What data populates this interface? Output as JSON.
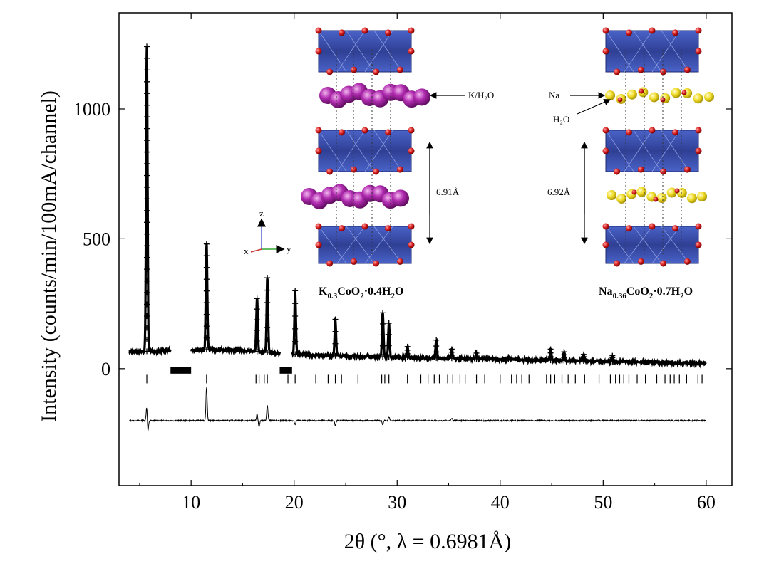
{
  "chart_data": {
    "type": "scatter",
    "title": "",
    "xlabel": "2θ (°, λ = 0.6981Å)",
    "ylabel": "Intensity (counts/min/100mA/channel)",
    "xlim": [
      3,
      62.5
    ],
    "ylim": [
      -450,
      1370
    ],
    "x_ticks": [
      10,
      20,
      30,
      40,
      50,
      60
    ],
    "y_ticks": [
      0,
      500,
      1000
    ],
    "x_tick_labels": [
      "10",
      "20",
      "30",
      "40",
      "50",
      "60"
    ],
    "y_tick_labels": [
      "0",
      "500",
      "1000"
    ],
    "grid": false,
    "legend": "none",
    "background_start": [
      4,
      65
    ],
    "background_end": [
      60,
      20
    ],
    "excluded_regions": [
      [
        8.0,
        10.0
      ],
      [
        18.6,
        19.8
      ]
    ],
    "peaks": [
      {
        "x": 5.7,
        "y": 1240
      },
      {
        "x": 11.5,
        "y": 480
      },
      {
        "x": 16.4,
        "y": 270
      },
      {
        "x": 17.4,
        "y": 350
      },
      {
        "x": 20.1,
        "y": 300
      },
      {
        "x": 24.0,
        "y": 190
      },
      {
        "x": 28.6,
        "y": 215
      },
      {
        "x": 29.2,
        "y": 175
      },
      {
        "x": 31.0,
        "y": 85
      },
      {
        "x": 33.8,
        "y": 110
      },
      {
        "x": 35.3,
        "y": 75
      },
      {
        "x": 37.7,
        "y": 60
      },
      {
        "x": 40.8,
        "y": 45
      },
      {
        "x": 44.9,
        "y": 75
      },
      {
        "x": 46.2,
        "y": 65
      },
      {
        "x": 48.1,
        "y": 55
      },
      {
        "x": 50.9,
        "y": 50
      }
    ],
    "reflection_tick_y": -40,
    "reflections": [
      5.7,
      11.5,
      16.3,
      16.6,
      17.1,
      17.4,
      19.4,
      20.1,
      22.1,
      23.3,
      24.0,
      24.6,
      26.2,
      28.5,
      28.8,
      29.2,
      31.0,
      32.3,
      33.0,
      33.6,
      34.1,
      34.9,
      35.4,
      36.1,
      36.6,
      37.7,
      38.5,
      40.0,
      41.1,
      41.6,
      42.1,
      42.8,
      44.5,
      44.9,
      45.3,
      46.0,
      46.6,
      47.3,
      48.2,
      49.6,
      50.7,
      51.2,
      51.6,
      52.0,
      52.5,
      53.3,
      54.1,
      55.2,
      56.0,
      56.5,
      56.9,
      57.4,
      58.1,
      59.2,
      59.6
    ],
    "difference_baseline": -200,
    "difference_features": [
      {
        "x": 5.7,
        "dy": 60
      },
      {
        "x": 5.8,
        "dy": -50
      },
      {
        "x": 11.5,
        "dy": 130
      },
      {
        "x": 16.4,
        "dy": 25
      },
      {
        "x": 16.6,
        "dy": -25
      },
      {
        "x": 17.4,
        "dy": 60
      },
      {
        "x": 20.1,
        "dy": -15
      },
      {
        "x": 24.0,
        "dy": -20
      },
      {
        "x": 28.6,
        "dy": -15
      },
      {
        "x": 29.2,
        "dy": 15
      },
      {
        "x": 35.3,
        "dy": 8
      }
    ]
  },
  "inset_left": {
    "formula_main": "K",
    "formula_sub1": "0.3",
    "formula_mid": "CoO",
    "formula_sub2": "2",
    "formula_mid2": "·0.4H",
    "formula_sub3": "2",
    "formula_end": "O",
    "label_intercalant": "K/H₂O",
    "spacing": "6.91Å",
    "colors": {
      "octahedra": "#3a4fa8",
      "oxygen": "#cc1111",
      "intercalant": "#a020a0"
    }
  },
  "inset_right": {
    "formula_main": "Na",
    "formula_sub1": "0.36",
    "formula_mid": "CoO",
    "formula_sub2": "2",
    "formula_mid2": "·0.7H",
    "formula_sub3": "2",
    "formula_end": "O",
    "label_na": "Na",
    "label_water": "H₂O",
    "spacing": "6.92Å",
    "colors": {
      "octahedra": "#3a4fa8",
      "oxygen": "#cc1111",
      "intercalant": "#f2e030"
    }
  },
  "axes_triad": {
    "z": "z",
    "x": "x",
    "y": "y"
  }
}
